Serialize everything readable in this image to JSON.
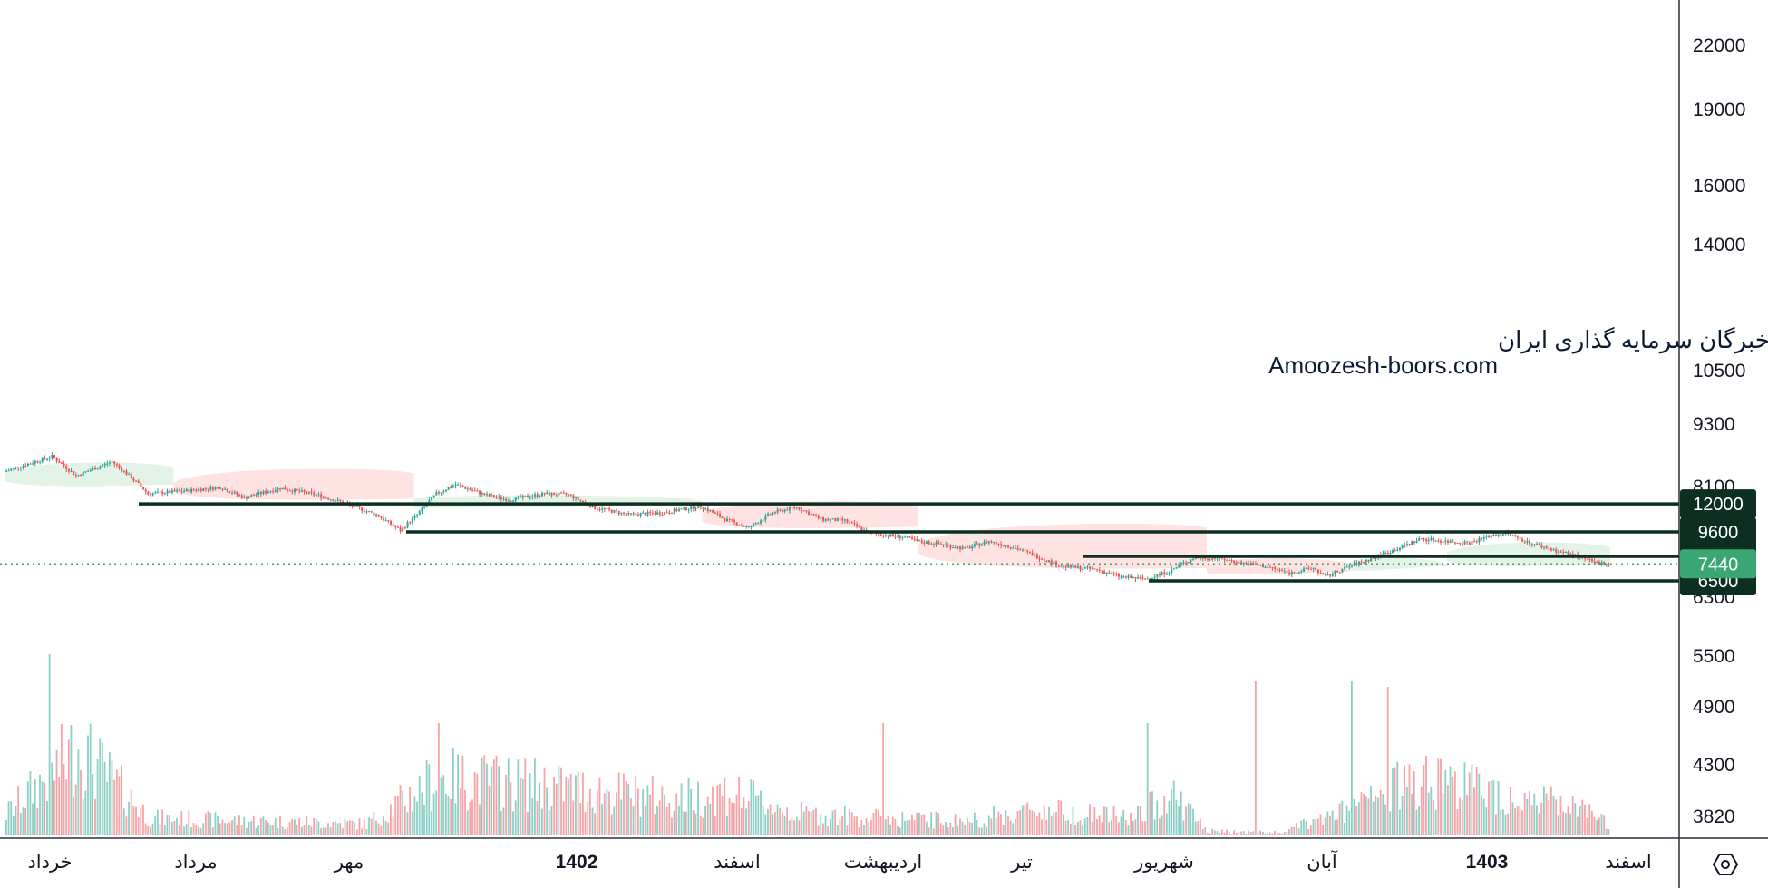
{
  "colors": {
    "up": "#26a69a",
    "down": "#ef5350",
    "up_volume": "#8ccfc6",
    "down_volume": "#f5a3a6",
    "level_line": "#0c2f22",
    "level_tag": "#0c2f22",
    "last_price_tag": "#3aa672",
    "cloud_bull": "#e3f3e8",
    "cloud_bear": "#ffe3e3",
    "axis_line": "#2a2e39"
  },
  "watermark": {
    "line1": "انجمن خبرگان سرمایه گذاری ایران",
    "line2": "Amoozesh-boors.com"
  },
  "settings_icon": "hexagon-settings-icon",
  "chart_data": {
    "type": "candlestick",
    "scale": "log",
    "y_ticks": [
      "22000",
      "19000",
      "16000",
      "14000",
      "10500",
      "9300",
      "8100",
      "7100",
      "6300",
      "5500",
      "4900",
      "4300",
      "3820"
    ],
    "x_ticks": [
      {
        "label": "خرداد",
        "year": false
      },
      {
        "label": "مرداد",
        "year": false
      },
      {
        "label": "مهر",
        "year": false
      },
      {
        "label": "1402",
        "year": true
      },
      {
        "label": "اسفند",
        "year": false
      },
      {
        "label": "اردیبهشت",
        "year": false
      },
      {
        "label": "تیر",
        "year": false
      },
      {
        "label": "شهریور",
        "year": false
      },
      {
        "label": "آبان",
        "year": false
      },
      {
        "label": "1403",
        "year": true
      },
      {
        "label": "اسفند",
        "year": false
      }
    ],
    "levels": [
      {
        "value": 12000,
        "label": "12000"
      },
      {
        "value": 9600,
        "label": "9600"
      },
      {
        "value": 7900,
        "label": "7900"
      },
      {
        "value": 6500,
        "label": "6500"
      }
    ],
    "last_price": {
      "value": 7440,
      "label": "7440"
    },
    "price_path": [
      [
        0,
        15500
      ],
      [
        20,
        17500
      ],
      [
        30,
        15000
      ],
      [
        45,
        16800
      ],
      [
        60,
        13000
      ],
      [
        75,
        13300
      ],
      [
        90,
        13700
      ],
      [
        100,
        12600
      ],
      [
        115,
        13600
      ],
      [
        130,
        12900
      ],
      [
        140,
        12200
      ],
      [
        155,
        11000
      ],
      [
        165,
        9700
      ],
      [
        172,
        11000
      ],
      [
        180,
        13000
      ],
      [
        188,
        14000
      ],
      [
        200,
        12900
      ],
      [
        210,
        12400
      ],
      [
        225,
        13000
      ],
      [
        235,
        12900
      ],
      [
        245,
        11700
      ],
      [
        260,
        11000
      ],
      [
        275,
        11200
      ],
      [
        290,
        11800
      ],
      [
        300,
        10600
      ],
      [
        310,
        9900
      ],
      [
        320,
        11200
      ],
      [
        330,
        11700
      ],
      [
        340,
        10600
      ],
      [
        350,
        10500
      ],
      [
        360,
        9500
      ],
      [
        375,
        9200
      ],
      [
        380,
        8900
      ],
      [
        390,
        8700
      ],
      [
        400,
        8400
      ],
      [
        410,
        8900
      ],
      [
        420,
        8500
      ],
      [
        430,
        7900
      ],
      [
        440,
        7300
      ],
      [
        455,
        7100
      ],
      [
        465,
        6700
      ],
      [
        475,
        6600
      ],
      [
        485,
        7000
      ],
      [
        495,
        7800
      ],
      [
        505,
        7800
      ],
      [
        515,
        7500
      ],
      [
        525,
        7300
      ],
      [
        535,
        6900
      ],
      [
        545,
        7200
      ],
      [
        550,
        6700
      ],
      [
        560,
        7300
      ],
      [
        570,
        7800
      ],
      [
        580,
        8400
      ],
      [
        590,
        9100
      ],
      [
        600,
        8900
      ],
      [
        610,
        8800
      ],
      [
        620,
        9400
      ],
      [
        625,
        9500
      ],
      [
        635,
        8800
      ],
      [
        645,
        8300
      ],
      [
        655,
        7900
      ],
      [
        662,
        7500
      ],
      [
        668,
        7440
      ]
    ],
    "volume_path": [
      [
        0,
        0.15
      ],
      [
        30,
        0.6
      ],
      [
        60,
        0.12
      ],
      [
        100,
        0.1
      ],
      [
        150,
        0.08
      ],
      [
        180,
        0.4
      ],
      [
        220,
        0.35
      ],
      [
        250,
        0.3
      ],
      [
        280,
        0.25
      ],
      [
        300,
        0.3
      ],
      [
        330,
        0.15
      ],
      [
        360,
        0.12
      ],
      [
        400,
        0.1
      ],
      [
        430,
        0.18
      ],
      [
        470,
        0.12
      ],
      [
        485,
        0.3
      ],
      [
        500,
        0.03
      ],
      [
        530,
        0.02
      ],
      [
        560,
        0.18
      ],
      [
        590,
        0.42
      ],
      [
        620,
        0.3
      ],
      [
        650,
        0.2
      ],
      [
        668,
        0.08
      ]
    ],
    "volume_spikes": [
      [
        18,
        1.0
      ],
      [
        560,
        0.85
      ],
      [
        520,
        0.85
      ],
      [
        575,
        0.82
      ],
      [
        475,
        0.62
      ],
      [
        365,
        0.62
      ],
      [
        180,
        0.62
      ]
    ],
    "ichimoku": [
      {
        "from": 0,
        "to": 70,
        "kind": "bull",
        "top": 17000,
        "bottom": 14000
      },
      {
        "from": 70,
        "to": 170,
        "kind": "bear",
        "top": 16200,
        "bottom": 12500
      },
      {
        "from": 170,
        "to": 290,
        "kind": "bull",
        "top": 13000,
        "bottom": 12000
      },
      {
        "from": 290,
        "to": 380,
        "kind": "bear",
        "top": 12500,
        "bottom": 10000
      },
      {
        "from": 380,
        "to": 500,
        "kind": "bear",
        "top": 10500,
        "bottom": 7200
      },
      {
        "from": 500,
        "to": 560,
        "kind": "bear",
        "top": 7900,
        "bottom": 7000
      },
      {
        "from": 560,
        "to": 600,
        "kind": "bull",
        "top": 7900,
        "bottom": 7300
      },
      {
        "from": 600,
        "to": 668,
        "kind": "bull",
        "top": 9000,
        "bottom": 7400
      }
    ]
  }
}
